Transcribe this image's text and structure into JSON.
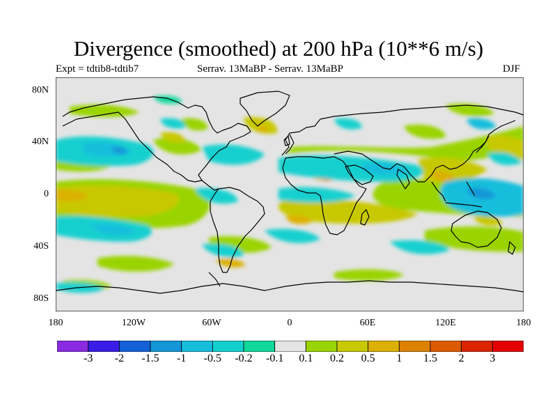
{
  "title": "Divergence (smoothed) at 200 hPa (10**6 m/s)",
  "subtitle": {
    "left": "Expt = tdtib8-tdtib7",
    "center": "Serrav.   13MaBP - Serrav.   13MaBP",
    "right": "DJF"
  },
  "axes": {
    "y_labels": [
      "80N",
      "40N",
      "0",
      "40S",
      "80S"
    ],
    "x_labels": [
      "180",
      "120W",
      "60W",
      "0",
      "60E",
      "120E",
      "180"
    ]
  },
  "colorbar": {
    "labels": [
      "-3",
      "-2",
      "-1.5",
      "-1",
      "-0.5",
      "-0.2",
      "-0.1",
      "0.1",
      "0.2",
      "0.5",
      "1",
      "1.5",
      "2",
      "3"
    ],
    "colors": [
      "#8a2be2",
      "#3a1de6",
      "#1460d8",
      "#1496d8",
      "#16bedc",
      "#13d0cf",
      "#10d89a",
      "#e4e4e4",
      "#9ad400",
      "#c8c800",
      "#dcb000",
      "#dc8200",
      "#dc5a00",
      "#dc2400",
      "#e40000"
    ]
  },
  "colors": {
    "land_outline": "#000000",
    "background_field": "#e4e4e4"
  }
}
